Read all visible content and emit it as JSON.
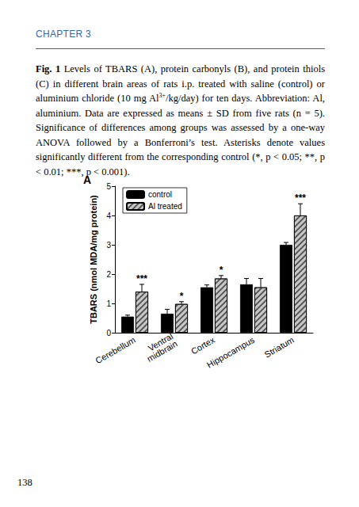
{
  "header": "CHAPTER 3",
  "caption": [
    {
      "text": "Fig. 1",
      "bold": true
    },
    {
      "text": " Levels of TBARS (A), protein carbonyls (B), and protein thiols (C) in different brain areas of rats i.p. treated with saline (control) or aluminium chloride (10 mg Al"
    },
    {
      "text": "3+",
      "sup": true
    },
    {
      "text": "/kg/day) for ten days. Abbreviation: Al, aluminium. Data are expressed as means ± SD from five rats (n = 5). Significance of differences among groups was assessed by a one-way ANOVA followed by a Bonferroni’s test. Asterisks denote values significantly different from the corresponding control (*, p < 0.05; **, p < 0.01; ***, p < 0.001)."
    }
  ],
  "page_number": "138",
  "chart_data": {
    "type": "bar",
    "title": "A",
    "ylabel": "TBARS (nmol MDA/mg protein)",
    "categories": [
      "Cerebellum",
      "Ventral midbrain",
      "Cortex",
      "Hippocampus",
      "Striatum"
    ],
    "series": [
      {
        "name": "control",
        "color": "#000000",
        "values": [
          0.55,
          0.65,
          1.55,
          1.65,
          3.0
        ],
        "errors": [
          0.05,
          0.15,
          0.08,
          0.2,
          0.08
        ]
      },
      {
        "name": "Al treated",
        "color": "#c8c8c8",
        "values": [
          1.4,
          0.98,
          1.85,
          1.55,
          4.0
        ],
        "errors": [
          0.25,
          0.08,
          0.1,
          0.3,
          0.4
        ],
        "annotations": [
          "***",
          "*",
          "*",
          null,
          "***"
        ]
      }
    ],
    "ylim": [
      0,
      5
    ],
    "yticks": [
      0,
      1,
      2,
      3,
      4,
      5
    ],
    "legend": "upper left",
    "grid": false
  }
}
